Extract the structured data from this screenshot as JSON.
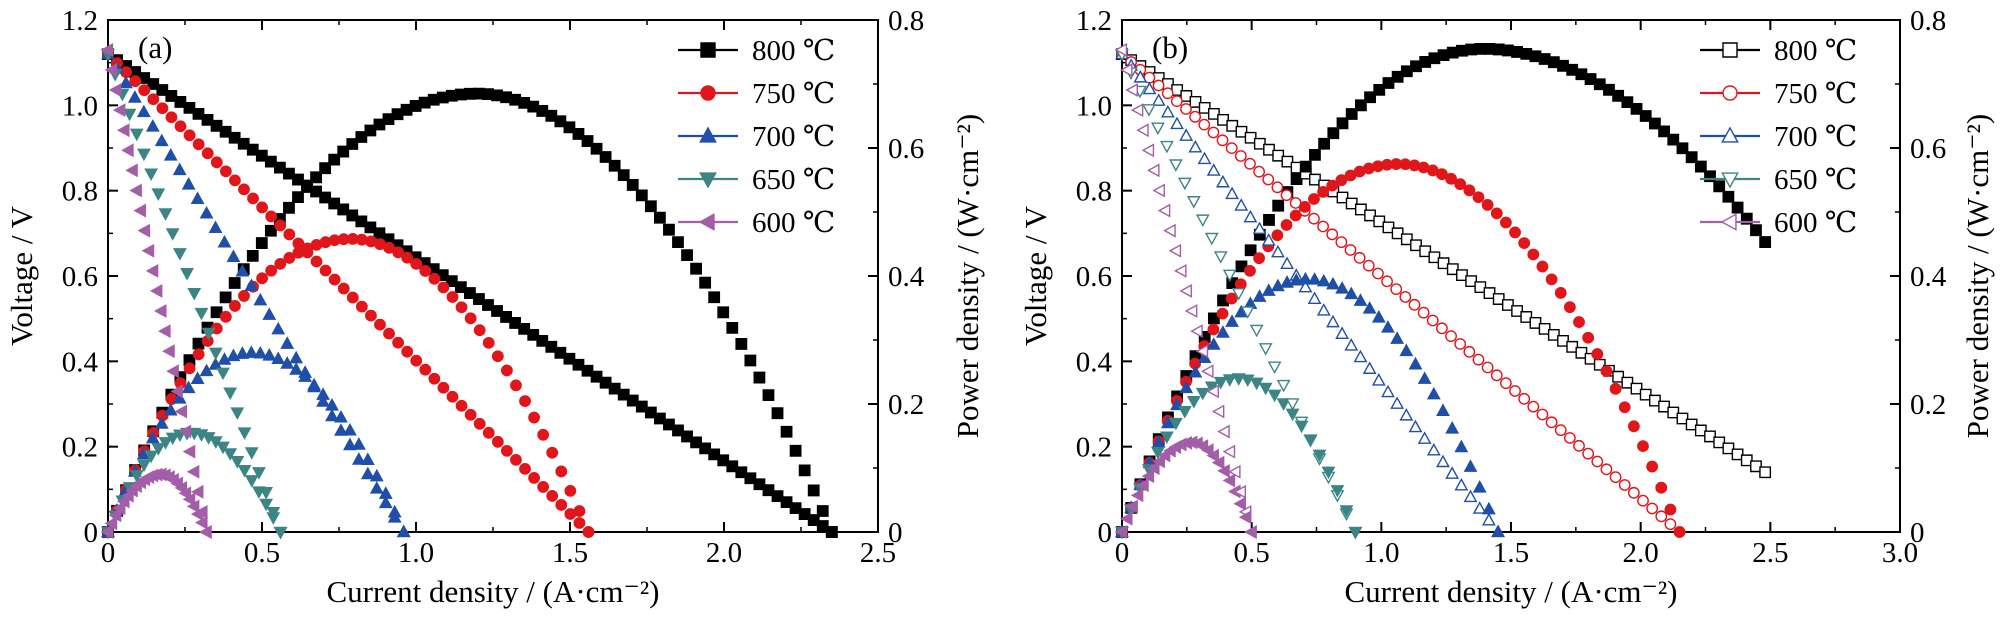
{
  "chart_data": [
    {
      "type": "line",
      "panel_label": "(a)",
      "marker_fill": "filled",
      "xlabel": "Current density / (A·cm⁻²)",
      "ylabel_left": "Voltage / V",
      "ylabel_right": "Power density / (W·cm⁻²)",
      "xlim": [
        0,
        2.5
      ],
      "ylim_left": [
        0,
        1.2
      ],
      "ylim_right": [
        0,
        0.8
      ],
      "x_ticks": [
        "0",
        "0.5",
        "1.0",
        "1.5",
        "2.0",
        "2.5"
      ],
      "y_left_ticks": [
        "0",
        "0.2",
        "0.4",
        "0.6",
        "0.8",
        "1.0",
        "1.2"
      ],
      "y_right_ticks": [
        "0",
        "0.2",
        "0.4",
        "0.6",
        "0.8"
      ],
      "legend_position": "top-right",
      "series": [
        {
          "name": "800 ℃",
          "color": "#000000",
          "marker": "square",
          "ocv": 1.12,
          "i_max": 2.35,
          "peak_power": 0.685,
          "i_at_peak": 1.2
        },
        {
          "name": "750 ℃",
          "color": "#e0161b",
          "marker": "circle",
          "ocv": 1.12,
          "i_max": 1.56,
          "peak_power": 0.458,
          "i_at_peak": 0.79
        },
        {
          "name": "700 ℃",
          "color": "#1f4fa8",
          "marker": "triangle-up",
          "ocv": 1.12,
          "i_max": 0.96,
          "peak_power": 0.28,
          "i_at_peak": 0.47
        },
        {
          "name": "650 ℃",
          "color": "#3d8585",
          "marker": "triangle-down",
          "ocv": 1.12,
          "i_max": 0.56,
          "peak_power": 0.155,
          "i_at_peak": 0.27
        },
        {
          "name": "600 ℃",
          "color": "#a45da8",
          "marker": "triangle-left",
          "ocv": 1.13,
          "i_max": 0.32,
          "peak_power": 0.09,
          "i_at_peak": 0.17
        }
      ]
    },
    {
      "type": "line",
      "panel_label": "(b)",
      "marker_fill": "open",
      "xlabel": "Current density / (A·cm⁻²)",
      "ylabel_left": "Voltage / V",
      "ylabel_right": "Power density / (W·cm⁻²)",
      "xlim": [
        0,
        3.0
      ],
      "ylim_left": [
        0,
        1.2
      ],
      "ylim_right": [
        0,
        0.8
      ],
      "x_ticks": [
        "0",
        "0.5",
        "1.0",
        "1.5",
        "2.0",
        "2.5",
        "3.0"
      ],
      "y_left_ticks": [
        "0",
        "0.2",
        "0.4",
        "0.6",
        "0.8",
        "1.0",
        "1.2"
      ],
      "y_right_ticks": [
        "0",
        "0.2",
        "0.4",
        "0.6",
        "0.8"
      ],
      "legend_position": "top-right",
      "series": [
        {
          "name": "800 ℃",
          "color": "#000000",
          "marker": "square",
          "ocv": 1.12,
          "i_max": 2.48,
          "v_end": 0.14,
          "peak_power": 0.755,
          "i_at_peak": 1.4
        },
        {
          "name": "750 ℃",
          "color": "#e0161b",
          "marker": "circle",
          "ocv": 1.12,
          "i_max": 2.15,
          "peak_power": 0.575,
          "i_at_peak": 1.07
        },
        {
          "name": "700 ℃",
          "color": "#1f4fa8",
          "marker": "triangle-up",
          "ocv": 1.12,
          "i_max": 1.45,
          "peak_power": 0.395,
          "i_at_peak": 0.72
        },
        {
          "name": "650 ℃",
          "color": "#3d8585",
          "marker": "triangle-down",
          "ocv": 1.12,
          "i_max": 0.9,
          "peak_power": 0.24,
          "i_at_peak": 0.45
        },
        {
          "name": "600 ℃",
          "color": "#a45da8",
          "marker": "triangle-left",
          "ocv": 1.13,
          "i_max": 0.5,
          "peak_power": 0.14,
          "i_at_peak": 0.27
        }
      ]
    }
  ]
}
